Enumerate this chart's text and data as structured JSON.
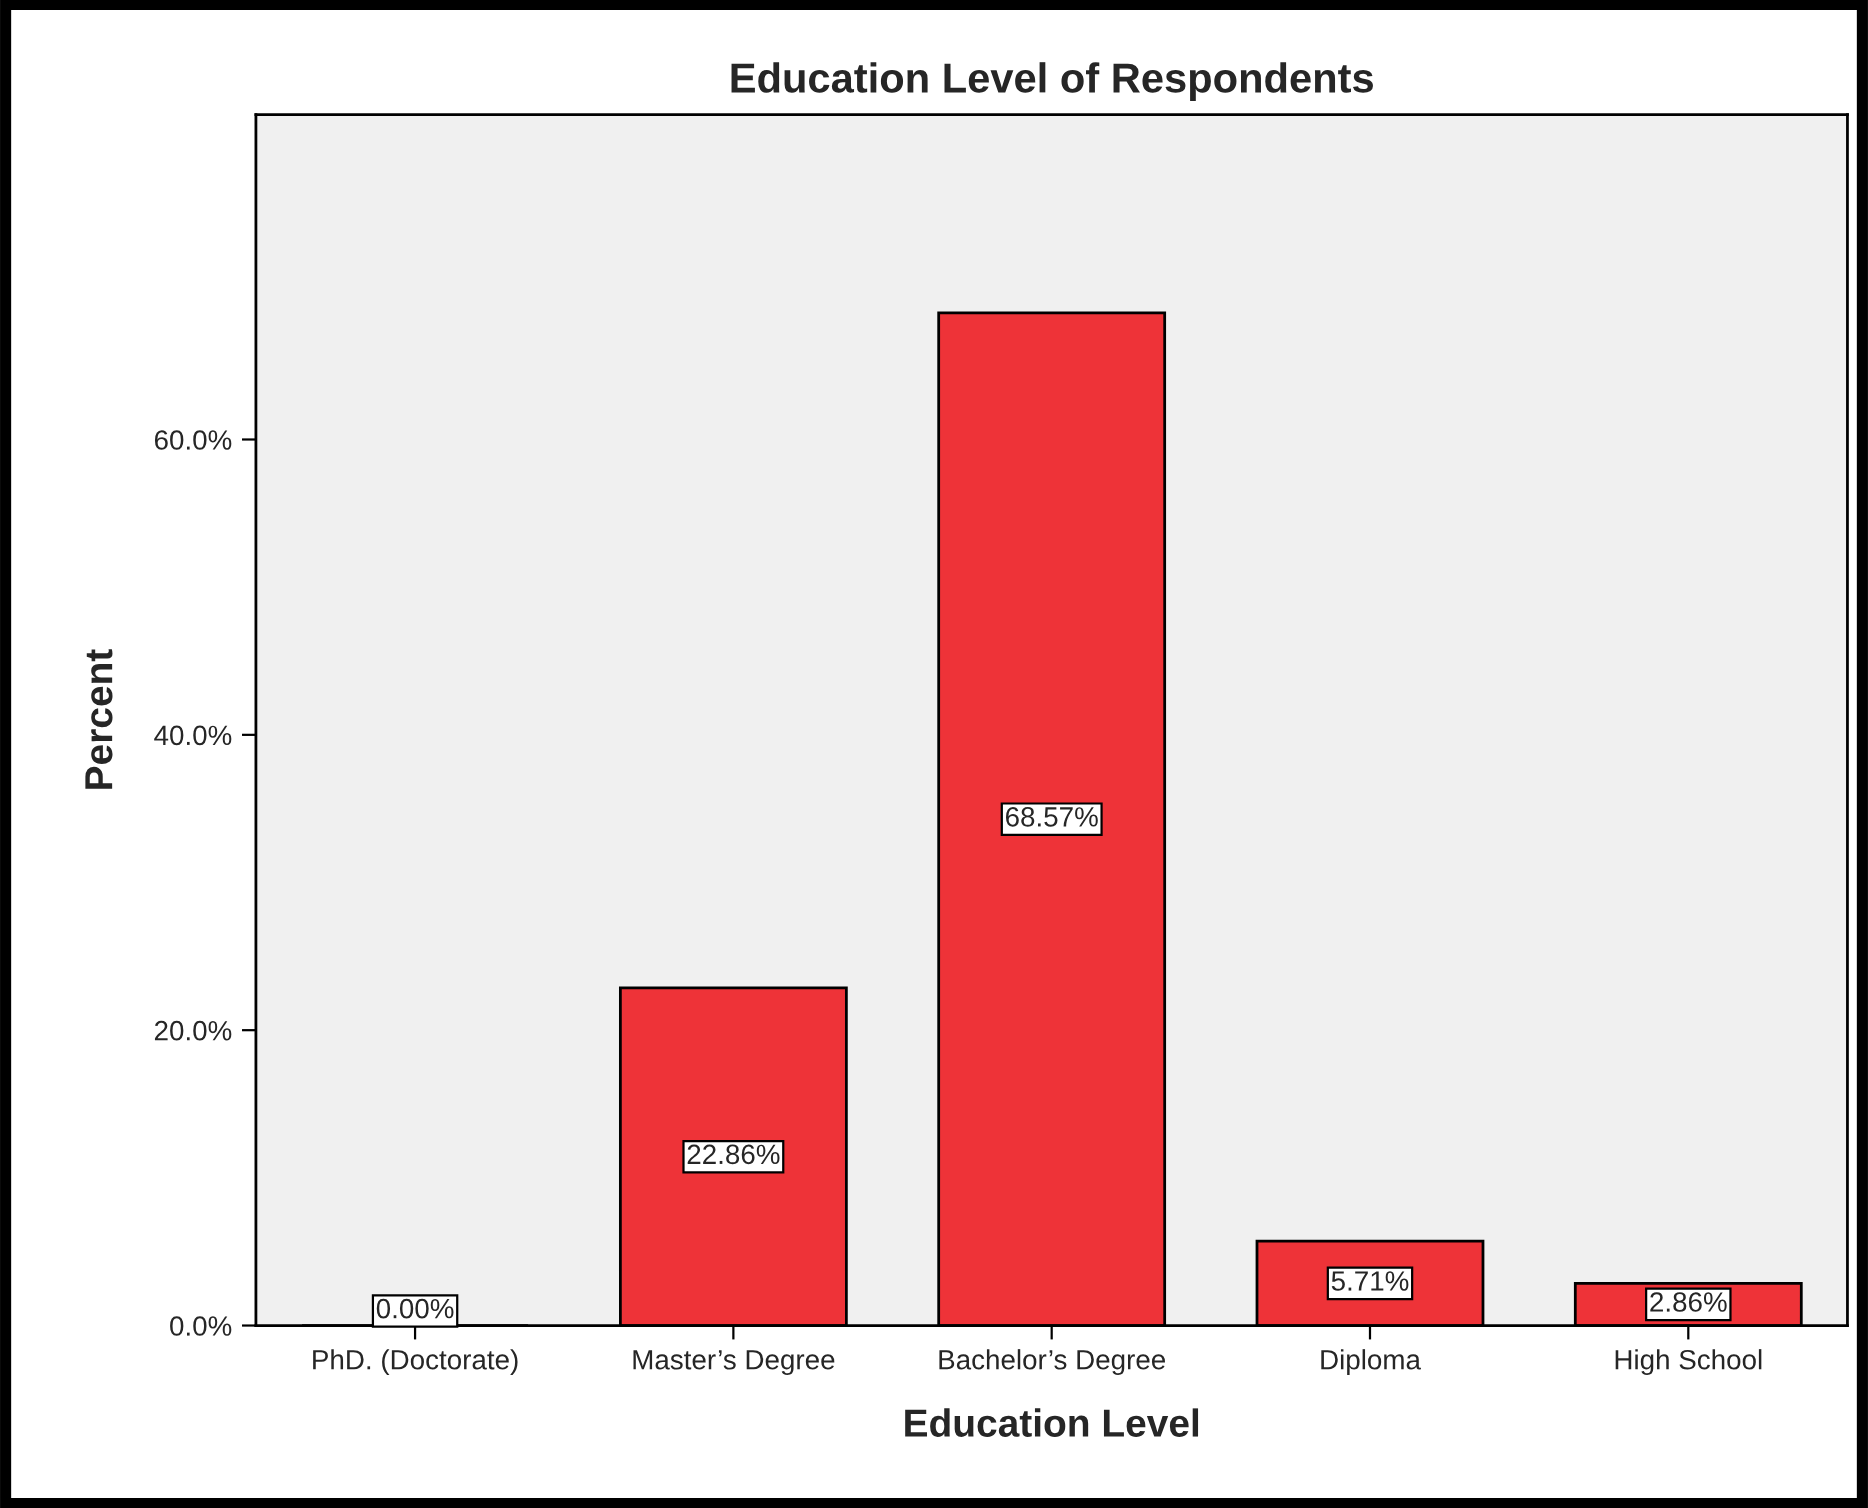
{
  "chart_data": {
    "type": "bar",
    "title": "Education Level of Respondents",
    "xlabel": "Education Level",
    "ylabel": "Percent",
    "categories": [
      "PhD. (Doctorate)",
      "Master’s Degree",
      "Bachelor’s Degree",
      "Diploma",
      "High School"
    ],
    "values": [
      0.0,
      22.86,
      68.57,
      5.71,
      2.86
    ],
    "value_labels": [
      "0.00%",
      "22.86%",
      "68.57%",
      "5.71%",
      "2.86%"
    ],
    "color": "#ee3338",
    "ylim": [
      0,
      82
    ],
    "yticks": [
      {
        "value": 0,
        "label": "0.0%"
      },
      {
        "value": 20,
        "label": "20.0%"
      },
      {
        "value": 40,
        "label": "40.0%"
      },
      {
        "value": 60,
        "label": "60.0%"
      }
    ],
    "grid": false
  }
}
